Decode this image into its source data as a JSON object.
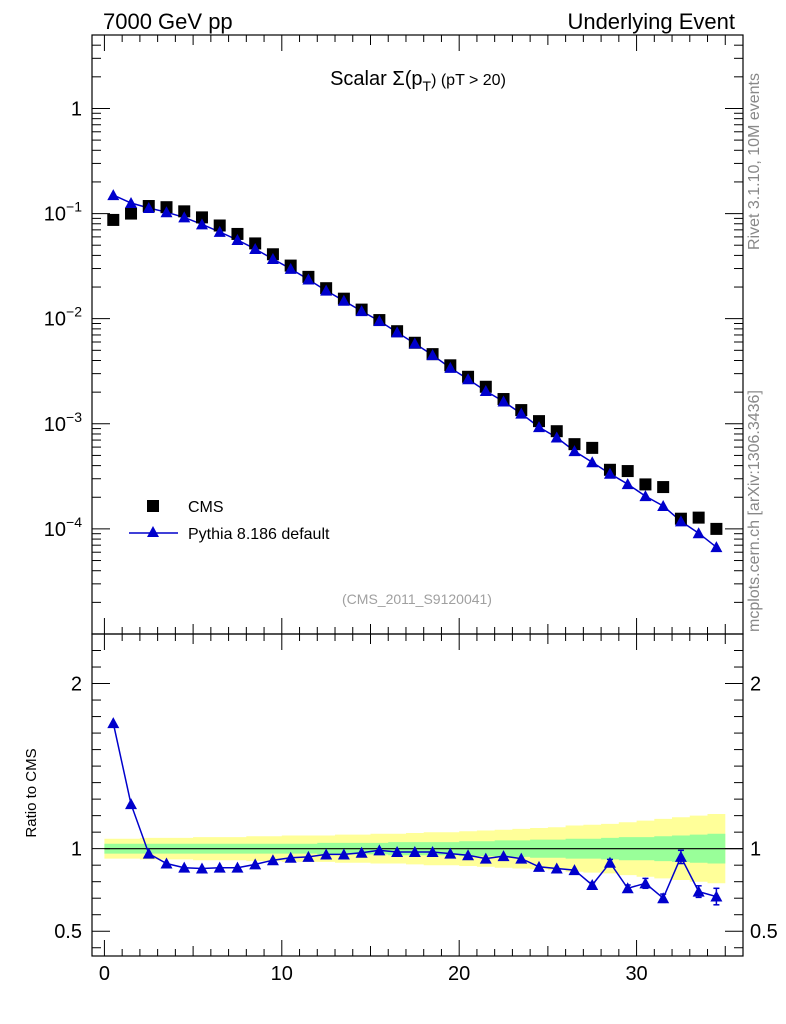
{
  "header": {
    "left": "7000 GeV pp",
    "right": "Underlying Event"
  },
  "side": {
    "top": "Rivet 3.1.10,  10M events",
    "bottom": "mcplots.cern.ch [arXiv:1306.3436]"
  },
  "chart_data": {
    "type": "scatter",
    "title_prefix": "Scalar Σ(p",
    "title_sub": "T",
    "title_suffix": ") (pT > 20)",
    "analysis": "(CMS_2011_S9120041)",
    "x": [
      0.5,
      1.5,
      2.5,
      3.5,
      4.5,
      5.5,
      6.5,
      7.5,
      8.5,
      9.5,
      10.5,
      11.5,
      12.5,
      13.5,
      14.5,
      15.5,
      16.5,
      17.5,
      18.5,
      19.5,
      20.5,
      21.5,
      22.5,
      23.5,
      24.5,
      25.5,
      26.5,
      27.5,
      28.5,
      29.5,
      30.5,
      31.5,
      32.5,
      33.5,
      34.5
    ],
    "xlim": [
      -0.7,
      36
    ],
    "xticks": [
      0,
      10,
      20,
      30
    ],
    "top_panel": {
      "scale": "log",
      "ylim": [
        1e-05,
        5
      ],
      "yticks": [
        {
          "value": 1,
          "base": "1",
          "exp": ""
        },
        {
          "value": 0.1,
          "base": "10",
          "exp": "−1"
        },
        {
          "value": 0.01,
          "base": "10",
          "exp": "−2"
        },
        {
          "value": 0.001,
          "base": "10",
          "exp": "−3"
        },
        {
          "value": 0.0001,
          "base": "10",
          "exp": "−4"
        }
      ],
      "series": [
        {
          "name": "CMS",
          "marker": "square",
          "color": "#000000",
          "values": [
            0.087,
            0.1,
            0.118,
            0.115,
            0.105,
            0.092,
            0.077,
            0.064,
            0.052,
            0.041,
            0.032,
            0.025,
            0.0195,
            0.0155,
            0.0122,
            0.0097,
            0.0076,
            0.0059,
            0.0046,
            0.0036,
            0.0028,
            0.00225,
            0.00172,
            0.00135,
            0.00106,
            0.00085,
            0.00064,
            0.00059,
            0.000365,
            0.000355,
            0.000265,
            0.00025,
            0.000125,
            0.000128,
            0.0001
          ]
        },
        {
          "name": "Pythia 8.186 default",
          "marker": "triangle",
          "color": "#0000cc",
          "values": [
            0.15,
            0.126,
            0.113,
            0.103,
            0.092,
            0.079,
            0.067,
            0.056,
            0.046,
            0.037,
            0.0298,
            0.0236,
            0.0185,
            0.0148,
            0.0118,
            0.0095,
            0.0074,
            0.0058,
            0.0045,
            0.0034,
            0.00265,
            0.00205,
            0.00163,
            0.00125,
            0.00093,
            0.00074,
            0.00055,
            0.00043,
            0.000335,
            0.000267,
            0.000205,
            0.000165,
            0.000118,
            9.1e-05,
            6.7e-05
          ]
        }
      ]
    },
    "ratio_panel": {
      "ylabel": "Ratio to CMS",
      "ylim": [
        0.35,
        2.3
      ],
      "yticks": [
        {
          "value": 2,
          "label": "2"
        },
        {
          "value": 1,
          "label": "1"
        },
        {
          "value": 0.5,
          "label": "0.5"
        }
      ],
      "values": [
        1.76,
        1.27,
        0.97,
        0.91,
        0.885,
        0.88,
        0.885,
        0.885,
        0.905,
        0.93,
        0.945,
        0.95,
        0.965,
        0.965,
        0.975,
        0.99,
        0.98,
        0.98,
        0.98,
        0.97,
        0.96,
        0.94,
        0.955,
        0.94,
        0.89,
        0.88,
        0.87,
        0.78,
        0.915,
        0.76,
        0.79,
        0.7,
        0.95,
        0.74,
        0.71
      ],
      "errors": [
        0,
        0,
        0,
        0,
        0,
        0,
        0,
        0,
        0,
        0,
        0,
        0,
        0,
        0,
        0,
        0,
        0,
        0,
        0,
        0,
        0,
        0,
        0,
        0,
        0,
        0,
        0,
        0.015,
        0.02,
        0.02,
        0.03,
        0.025,
        0.04,
        0.035,
        0.05
      ],
      "band_green": [
        0.03,
        0.03,
        0.03,
        0.03,
        0.03,
        0.03,
        0.03,
        0.03,
        0.03,
        0.03,
        0.03,
        0.03,
        0.035,
        0.035,
        0.035,
        0.035,
        0.04,
        0.04,
        0.04,
        0.04,
        0.045,
        0.045,
        0.05,
        0.05,
        0.055,
        0.055,
        0.06,
        0.06,
        0.065,
        0.07,
        0.07,
        0.075,
        0.08,
        0.085,
        0.09
      ],
      "band_yellow": [
        0.06,
        0.06,
        0.065,
        0.065,
        0.065,
        0.07,
        0.07,
        0.07,
        0.075,
        0.075,
        0.08,
        0.08,
        0.08,
        0.085,
        0.085,
        0.09,
        0.09,
        0.095,
        0.1,
        0.1,
        0.105,
        0.11,
        0.115,
        0.12,
        0.125,
        0.13,
        0.14,
        0.145,
        0.15,
        0.16,
        0.17,
        0.18,
        0.19,
        0.2,
        0.21
      ],
      "green_color": "#99ff99",
      "yellow_color": "#ffff99"
    }
  }
}
